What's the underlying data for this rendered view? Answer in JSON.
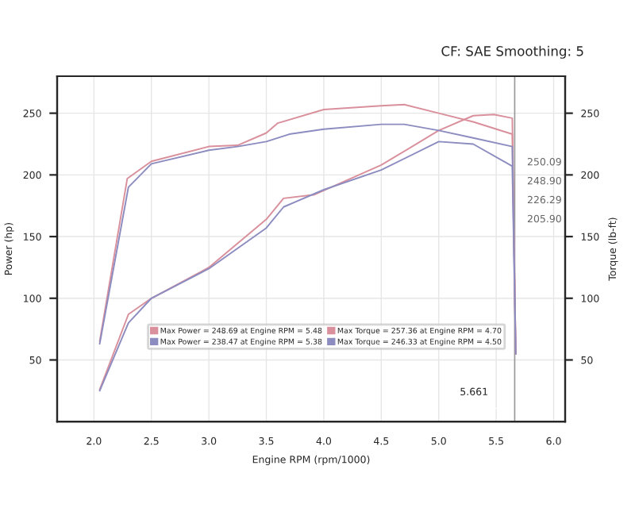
{
  "chart_data": {
    "type": "line",
    "subtitle": "CF: SAE Smoothing: 5",
    "xlabel": "Engine RPM (rpm/1000)",
    "ylabel": "Power (hp)",
    "y2label": "Torque (lb-ft)",
    "xlim": [
      1.68,
      6.1
    ],
    "xticks": [
      {
        "value": 2.0,
        "label": "2.0"
      },
      {
        "value": 2.5,
        "label": "2.5"
      },
      {
        "value": 3.0,
        "label": "3.0"
      },
      {
        "value": 3.5,
        "label": "3.5"
      },
      {
        "value": 4.0,
        "label": "4.0"
      },
      {
        "value": 4.5,
        "label": "4.5"
      },
      {
        "value": 5.0,
        "label": "5.0"
      },
      {
        "value": 5.5,
        "label": "5.5"
      },
      {
        "value": 6.0,
        "label": "6.0"
      }
    ],
    "ylim": [
      0,
      280
    ],
    "yticks": [
      50,
      100,
      150,
      200,
      250
    ],
    "y2lim": [
      0,
      280
    ],
    "y2ticks": [
      50,
      100,
      150,
      200,
      250
    ],
    "grid": true,
    "legend": "bottom",
    "marker": "none",
    "line_style": "solid",
    "series": [
      {
        "name": "Max Power = 248.69 at Engine RPM = 5.48",
        "color": "#d9909c",
        "x": [
          2.05,
          2.3,
          2.5,
          3.0,
          3.5,
          3.65,
          3.92,
          4.5,
          5.0,
          5.3,
          5.48,
          5.64,
          5.67
        ],
        "values": [
          26,
          87,
          100,
          125,
          164,
          181,
          184,
          208,
          236,
          248,
          249,
          246,
          55
        ]
      },
      {
        "name": "Max Power = 238.47 at Engine RPM = 5.38",
        "color": "#8c8cc0",
        "x": [
          2.05,
          2.3,
          2.5,
          3.0,
          3.5,
          3.65,
          4.0,
          4.5,
          5.0,
          5.3,
          5.64,
          5.67
        ],
        "values": [
          25,
          80,
          100,
          124,
          157,
          174,
          188,
          204,
          227,
          225,
          207,
          55
        ]
      },
      {
        "name": "Max Torque = 257.36 at Engine RPM = 4.70",
        "color": "#d9909c",
        "axis": "y2",
        "x": [
          2.05,
          2.29,
          2.5,
          3.0,
          3.25,
          3.5,
          3.6,
          4.0,
          4.5,
          4.7,
          5.0,
          5.3,
          5.64,
          5.67
        ],
        "values": [
          65,
          197,
          211,
          223,
          224,
          234,
          242,
          253,
          256,
          257,
          250,
          243,
          233,
          55
        ]
      },
      {
        "name": "Max Torque = 246.33 at Engine RPM = 4.50",
        "color": "#8c8cc0",
        "axis": "y2",
        "x": [
          2.05,
          2.3,
          2.5,
          3.0,
          3.25,
          3.5,
          3.7,
          4.0,
          4.5,
          4.7,
          5.0,
          5.3,
          5.64,
          5.67
        ],
        "values": [
          63,
          190,
          209,
          220,
          223,
          227,
          233,
          237,
          241,
          241,
          236,
          230,
          223,
          55
        ]
      }
    ],
    "ref_lines": [
      {
        "axis": "x",
        "value": 5.661,
        "label": "5.661",
        "color": "#999999"
      }
    ],
    "annotations": [
      "250.09",
      "248.90",
      "226.29",
      "205.90"
    ]
  }
}
